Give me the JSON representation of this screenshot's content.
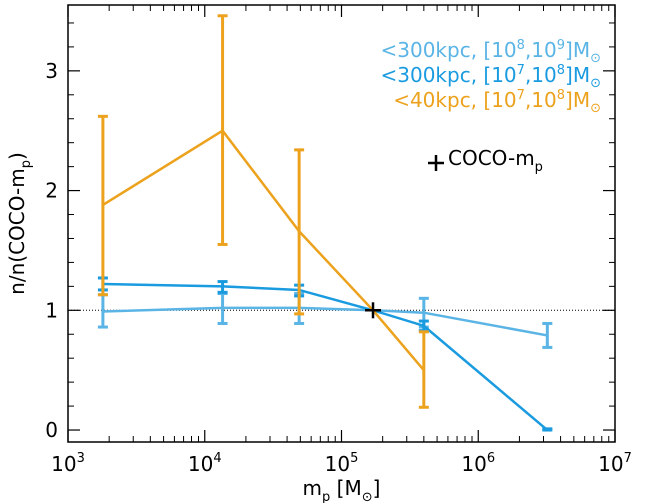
{
  "chart_data": {
    "type": "line",
    "x_scale": "log",
    "xlim": [
      1000,
      10000000
    ],
    "ylim": [
      -0.1,
      3.55
    ],
    "x_ticks": [
      {
        "value": 1000,
        "base": "10",
        "exp": "3"
      },
      {
        "value": 10000,
        "base": "10",
        "exp": "4"
      },
      {
        "value": 100000,
        "base": "10",
        "exp": "5"
      },
      {
        "value": 1000000,
        "base": "10",
        "exp": "6"
      },
      {
        "value": 10000000,
        "base": "10",
        "exp": "7"
      }
    ],
    "y_ticks": [
      {
        "value": 0,
        "label": "0"
      },
      {
        "value": 1,
        "label": "1"
      },
      {
        "value": 2,
        "label": "2"
      },
      {
        "value": 3,
        "label": "3"
      }
    ],
    "xlabel": {
      "main": "m",
      "sub": "p",
      "unit_open": " [M",
      "unit_sym": "⊙",
      "unit_close": "]"
    },
    "ylabel": {
      "pre": "n/n(COCO-m",
      "sub": "p",
      "post": ")"
    },
    "reference_line": {
      "y": 1,
      "style": "dotted"
    },
    "series": [
      {
        "name": "<300kpc, [10^8,10^9]M⊙",
        "label_parts": {
          "pre": "<300kpc, [10",
          "e1": "8",
          "mid": ",10",
          "e2": "9",
          "post": "]M",
          "sym": "⊙"
        },
        "color": "#5ab4e5",
        "x": [
          1800,
          13500,
          49000,
          170000,
          400000,
          3200000
        ],
        "y": [
          0.99,
          1.02,
          1.02,
          1.0,
          0.98,
          0.79
        ],
        "err_low": [
          0.86,
          0.89,
          0.89,
          null,
          0.86,
          0.69
        ],
        "err_high": [
          1.13,
          1.14,
          1.14,
          null,
          1.1,
          0.89
        ]
      },
      {
        "name": "<300kpc, [10^7,10^8]M⊙",
        "label_parts": {
          "pre": "<300kpc, [10",
          "e1": "7",
          "mid": ",10",
          "e2": "8",
          "post": "]M",
          "sym": "⊙"
        },
        "color": "#1a9be0",
        "x": [
          1800,
          13500,
          49000,
          170000,
          400000,
          3200000
        ],
        "y": [
          1.22,
          1.2,
          1.17,
          1.0,
          0.87,
          0.0
        ],
        "err_low": [
          1.17,
          1.15,
          1.12,
          null,
          0.83,
          0.0
        ],
        "err_high": [
          1.27,
          1.24,
          1.21,
          null,
          0.91,
          0.01
        ]
      },
      {
        "name": "<40kpc, [10^7,10^8]M⊙",
        "label_parts": {
          "pre": "<40kpc, [10",
          "e1": "7",
          "mid": ",10",
          "e2": "8",
          "post": "]M",
          "sym": "⊙"
        },
        "color": "#eca21d",
        "x": [
          1800,
          13500,
          49000,
          170000,
          400000
        ],
        "y": [
          1.88,
          2.5,
          1.66,
          1.0,
          0.5
        ],
        "err_low": [
          1.13,
          1.55,
          0.97,
          null,
          0.19
        ],
        "err_high": [
          2.62,
          3.46,
          2.34,
          null,
          0.82
        ]
      }
    ],
    "reference_marker": {
      "name": "COCO-m_p",
      "label_parts": {
        "pre": "COCO-m",
        "sub": "p"
      },
      "symbol": "+",
      "color": "#000000",
      "x": 170000,
      "y": 1.0
    },
    "legend_position": "top-right"
  }
}
